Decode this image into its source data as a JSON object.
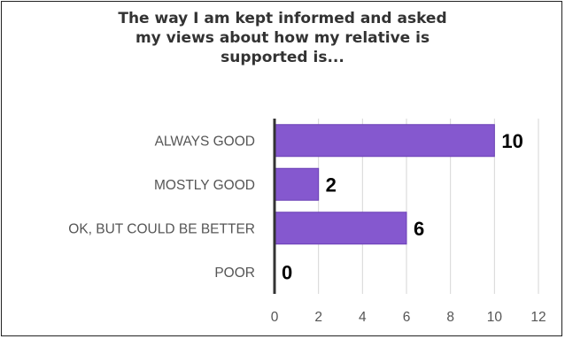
{
  "chart_data": {
    "type": "bar",
    "orientation": "horizontal",
    "title": "The way I am kept informed and asked\nmy views about how my relative is\nsupported is...",
    "categories": [
      "ALWAYS GOOD",
      "MOSTLY GOOD",
      "OK, BUT COULD BE BETTER",
      "POOR"
    ],
    "values": [
      10,
      2,
      6,
      0
    ],
    "xlim": [
      0,
      12
    ],
    "xticks": [
      0,
      2,
      4,
      6,
      8,
      10,
      12
    ],
    "grid": true,
    "legend": "none",
    "bar_color": "#8558CF",
    "bar_edge_color": "#6A3FB5"
  }
}
